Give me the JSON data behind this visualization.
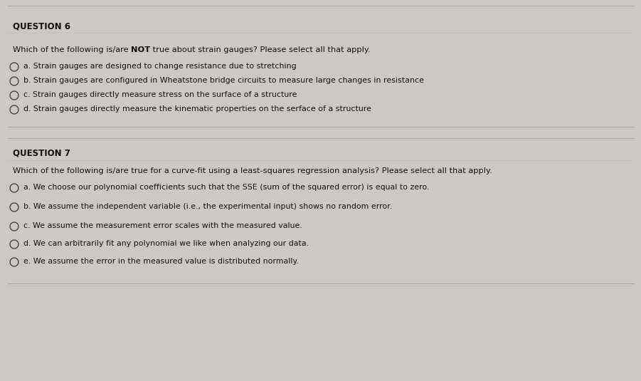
{
  "bg_color": "#ccc9c5",
  "border_color": "#aaaaaa",
  "text_color": "#111111",
  "q6_header": "QUESTION 6",
  "q6_prompt_pre": "Which of the following is/are ",
  "q6_prompt_bold": "NOT",
  "q6_prompt_post": " true about strain gauges? Please select all that apply.",
  "q6_options": [
    "a. Strain gauges are designed to change resistance due to stretching",
    "b. Strain gauges are configured in Wheatstone bridge circuits to measure large changes in resistance",
    "c. Strain gauges directly measure stress on the surface of a structure",
    "d. Strain gauges directly measure the kinematic properties on the serface of a structure"
  ],
  "q7_header": "QUESTION 7",
  "q7_prompt": "Which of the following is/are true for a curve-fit using a least-squares regression analysis? Please select all that apply.",
  "q7_options": [
    "a. We choose our polynomial coefficients such that the SSE (sum of the squared error) is equal to zero.",
    "b. We assume the independent variable (i.e., the experimental input) shows no random error.",
    "c. We assume the measurement error scales with the measured value.",
    "d. We can arbitrarily fit any polynomial we like when analyzing our data.",
    "e. We assume the error in the measured value is distributed normally."
  ],
  "header_fontsize": 8.5,
  "prompt_fontsize": 8.2,
  "option_fontsize": 7.9
}
